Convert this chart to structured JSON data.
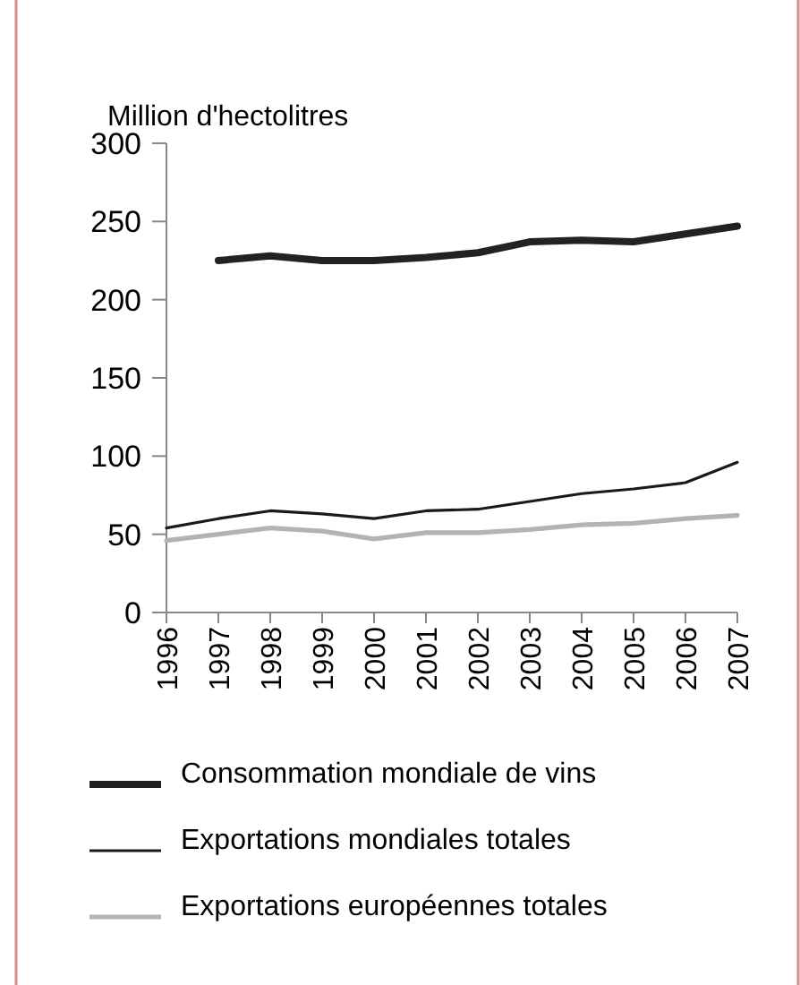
{
  "chart_data": {
    "type": "line",
    "ylabel": "Million d'hectolitres",
    "categories": [
      "1996",
      "1997",
      "1998",
      "1999",
      "2000",
      "2001",
      "2002",
      "2003",
      "2004",
      "2005",
      "2006",
      "2007"
    ],
    "series": [
      {
        "name": "Consommation mondiale de vins",
        "color": "#222222",
        "values": [
          null,
          225,
          228,
          225,
          225,
          227,
          230,
          237,
          238,
          237,
          242,
          247
        ]
      },
      {
        "name": "Exportations mondiales totales",
        "color": "#1a1a1a",
        "values": [
          54,
          60,
          65,
          63,
          60,
          65,
          66,
          71,
          76,
          79,
          83,
          96
        ]
      },
      {
        "name": "Exportations européennes totales",
        "color": "#b3b3b3",
        "values": [
          46,
          50,
          54,
          52,
          47,
          51,
          51,
          53,
          56,
          57,
          60,
          62
        ]
      }
    ],
    "ylim": [
      0,
      300
    ],
    "yticks": [
      0,
      50,
      100,
      150,
      200,
      250,
      300
    ],
    "grid": false,
    "legend": "bottom",
    "marker": "none",
    "line_style": "solid"
  }
}
